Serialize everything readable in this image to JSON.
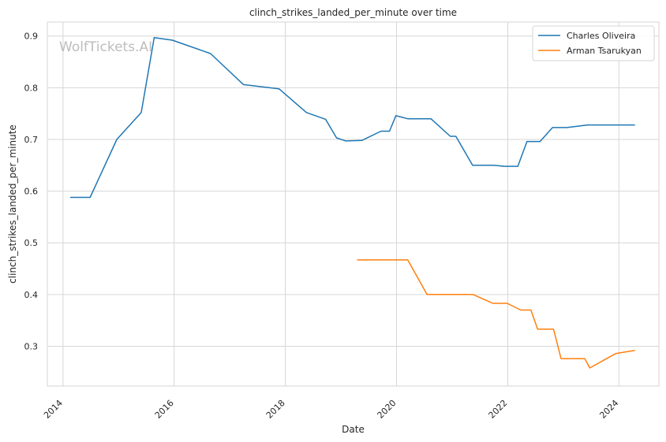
{
  "chart_data": {
    "type": "line",
    "title": "clinch_strikes_landed_per_minute over time",
    "xlabel": "Date",
    "ylabel": "clinch_strikes_landed_per_minute",
    "watermark": "WolfTickets.AI",
    "x_ticks": [
      "2014",
      "2016",
      "2018",
      "2020",
      "2022",
      "2024"
    ],
    "y_ticks": [
      "0.3",
      "0.4",
      "0.5",
      "0.6",
      "0.7",
      "0.8",
      "0.9"
    ],
    "xlim": [
      "2013-09-20",
      "2024-09-20"
    ],
    "ylim": [
      0.223,
      0.927
    ],
    "grid": true,
    "legend_position": "top-right",
    "series": [
      {
        "name": "Charles Oliveira",
        "color": "#1f77b4",
        "points": [
          [
            "2014-02-20",
            0.588
          ],
          [
            "2014-06-28",
            0.588
          ],
          [
            "2014-12-20",
            0.7
          ],
          [
            "2015-05-30",
            0.752
          ],
          [
            "2015-08-23",
            0.897
          ],
          [
            "2015-12-20",
            0.892
          ],
          [
            "2016-08-27",
            0.866
          ],
          [
            "2017-04-01",
            0.806
          ],
          [
            "2017-11-20",
            0.798
          ],
          [
            "2018-05-19",
            0.752
          ],
          [
            "2018-09-22",
            0.739
          ],
          [
            "2018-12-03",
            0.703
          ],
          [
            "2019-02-02",
            0.697
          ],
          [
            "2019-05-18",
            0.698
          ],
          [
            "2019-09-21",
            0.716
          ],
          [
            "2019-11-16",
            0.716
          ],
          [
            "2019-12-28",
            0.746
          ],
          [
            "2020-03-14",
            0.74
          ],
          [
            "2020-08-14",
            0.74
          ],
          [
            "2020-12-19",
            0.706
          ],
          [
            "2021-01-25",
            0.706
          ],
          [
            "2021-05-15",
            0.65
          ],
          [
            "2021-09-30",
            0.65
          ],
          [
            "2021-12-11",
            0.648
          ],
          [
            "2022-03-08",
            0.648
          ],
          [
            "2022-05-07",
            0.696
          ],
          [
            "2022-08-01",
            0.696
          ],
          [
            "2022-10-22",
            0.723
          ],
          [
            "2023-01-24",
            0.723
          ],
          [
            "2023-06-10",
            0.728
          ],
          [
            "2024-04-13",
            0.728
          ]
        ]
      },
      {
        "name": "Arman Tsarukyan",
        "color": "#ff7f0e",
        "points": [
          [
            "2019-04-20",
            0.467
          ],
          [
            "2020-03-15",
            0.467
          ],
          [
            "2020-07-20",
            0.4
          ],
          [
            "2021-05-18",
            0.4
          ],
          [
            "2021-09-25",
            0.383
          ],
          [
            "2021-12-28",
            0.383
          ],
          [
            "2022-03-27",
            0.37
          ],
          [
            "2022-06-02",
            0.37
          ],
          [
            "2022-07-16",
            0.333
          ],
          [
            "2022-10-29",
            0.333
          ],
          [
            "2022-12-17",
            0.276
          ],
          [
            "2023-05-22",
            0.276
          ],
          [
            "2023-06-24",
            0.258
          ],
          [
            "2023-12-12",
            0.286
          ],
          [
            "2024-04-13",
            0.292
          ]
        ]
      }
    ]
  }
}
